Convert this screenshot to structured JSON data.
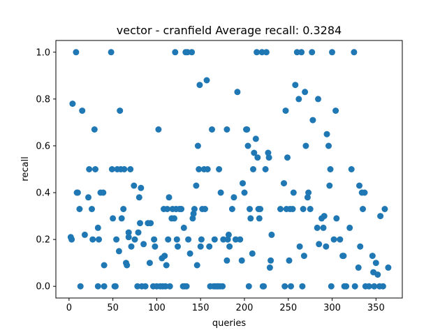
{
  "chart_data": {
    "type": "scatter",
    "title": "vector - cranfield  Average recall: 0.3284",
    "xlabel": "queries",
    "ylabel": "recall",
    "xlim": [
      -15,
      380
    ],
    "ylim": [
      -0.05,
      1.05
    ],
    "xticks": [
      "0",
      "50",
      "100",
      "150",
      "200",
      "250",
      "300",
      "350"
    ],
    "yticks": [
      "0.0",
      "0.2",
      "0.4",
      "0.6",
      "0.8",
      "1.0"
    ],
    "grid": false,
    "marker_color": "#1f77b4",
    "points": [
      [
        2,
        0.21
      ],
      [
        3,
        0.2
      ],
      [
        4,
        0.78
      ],
      [
        8,
        1.0
      ],
      [
        9,
        0.4
      ],
      [
        10,
        0.4
      ],
      [
        12,
        0.33
      ],
      [
        13,
        0.0
      ],
      [
        15,
        0.75
      ],
      [
        18,
        0.22
      ],
      [
        22,
        0.38
      ],
      [
        23,
        0.5
      ],
      [
        26,
        0.33
      ],
      [
        27,
        0.2
      ],
      [
        29,
        0.67
      ],
      [
        30,
        0.5
      ],
      [
        33,
        0.0
      ],
      [
        33,
        0.25
      ],
      [
        34,
        0.2
      ],
      [
        36,
        0.4
      ],
      [
        39,
        0.4
      ],
      [
        40,
        0.09
      ],
      [
        40,
        0.0
      ],
      [
        48,
        1.0
      ],
      [
        49,
        0.5
      ],
      [
        50,
        0.29
      ],
      [
        52,
        0.0
      ],
      [
        53,
        0.0
      ],
      [
        54,
        0.2
      ],
      [
        55,
        0.5
      ],
      [
        57,
        0.15
      ],
      [
        58,
        0.75
      ],
      [
        59,
        0.5
      ],
      [
        60,
        0.29
      ],
      [
        62,
        0.33
      ],
      [
        63,
        0.5
      ],
      [
        65,
        0.1
      ],
      [
        66,
        0.09
      ],
      [
        68,
        0.21
      ],
      [
        68,
        0.23
      ],
      [
        70,
        0.5
      ],
      [
        71,
        0.17
      ],
      [
        74,
        0.43
      ],
      [
        75,
        0.2
      ],
      [
        78,
        0.0
      ],
      [
        79,
        0.23
      ],
      [
        80,
        0.38
      ],
      [
        81,
        0.27
      ],
      [
        82,
        0.42
      ],
      [
        83,
        0.0
      ],
      [
        85,
        0.18
      ],
      [
        87,
        0.0
      ],
      [
        90,
        0.27
      ],
      [
        92,
        0.1
      ],
      [
        93,
        0.27
      ],
      [
        96,
        0.0
      ],
      [
        97,
        0.2
      ],
      [
        98,
        0.17
      ],
      [
        100,
        0.0
      ],
      [
        102,
        0.67
      ],
      [
        104,
        0.0
      ],
      [
        106,
        0.12
      ],
      [
        107,
        0.0
      ],
      [
        108,
        0.33
      ],
      [
        109,
        0.13
      ],
      [
        110,
        0.0
      ],
      [
        111,
        0.09
      ],
      [
        112,
        0.33
      ],
      [
        113,
        0.2
      ],
      [
        114,
        0.38
      ],
      [
        115,
        0.0
      ],
      [
        117,
        0.29
      ],
      [
        118,
        0.33
      ],
      [
        120,
        0.29
      ],
      [
        121,
        1.0
      ],
      [
        122,
        0.33
      ],
      [
        123,
        0.2
      ],
      [
        124,
        0.17
      ],
      [
        126,
        0.33
      ],
      [
        128,
        0.33
      ],
      [
        130,
        0.0
      ],
      [
        131,
        0.25
      ],
      [
        132,
        0.0
      ],
      [
        133,
        1.0
      ],
      [
        134,
        0.0
      ],
      [
        135,
        1.0
      ],
      [
        136,
        0.2
      ],
      [
        138,
        0.14
      ],
      [
        140,
        1.0
      ],
      [
        141,
        0.29
      ],
      [
        142,
        0.31
      ],
      [
        143,
        0.33
      ],
      [
        145,
        0.43
      ],
      [
        146,
        0.09
      ],
      [
        147,
        0.6
      ],
      [
        148,
        0.5
      ],
      [
        149,
        0.86
      ],
      [
        150,
        0.17
      ],
      [
        151,
        0.2
      ],
      [
        152,
        0.33
      ],
      [
        154,
        0.5
      ],
      [
        155,
        0.33
      ],
      [
        157,
        0.88
      ],
      [
        158,
        0.5
      ],
      [
        160,
        0.17
      ],
      [
        161,
        0.0
      ],
      [
        163,
        0.67
      ],
      [
        165,
        0.0
      ],
      [
        166,
        0.2
      ],
      [
        167,
        0.0
      ],
      [
        169,
        0.0
      ],
      [
        170,
        0.0
      ],
      [
        171,
        0.5
      ],
      [
        172,
        0.0
      ],
      [
        173,
        0.4
      ],
      [
        175,
        0.0
      ],
      [
        176,
        0.2
      ],
      [
        180,
        0.67
      ],
      [
        180,
        0.11
      ],
      [
        181,
        0.2
      ],
      [
        182,
        0.22
      ],
      [
        183,
        0.17
      ],
      [
        186,
        0.33
      ],
      [
        188,
        0.38
      ],
      [
        190,
        0.2
      ],
      [
        192,
        0.83
      ],
      [
        195,
        0.2
      ],
      [
        197,
        0.11
      ],
      [
        198,
        0.44
      ],
      [
        200,
        0.4
      ],
      [
        202,
        0.67
      ],
      [
        203,
        0.67
      ],
      [
        204,
        0.6
      ],
      [
        205,
        0.0
      ],
      [
        206,
        0.33
      ],
      [
        207,
        0.29
      ],
      [
        209,
        0.14
      ],
      [
        210,
        0.5
      ],
      [
        211,
        0.57
      ],
      [
        213,
        0.63
      ],
      [
        214,
        1.0
      ],
      [
        215,
        0.55
      ],
      [
        216,
        0.33
      ],
      [
        217,
        0.29
      ],
      [
        218,
        0.33
      ],
      [
        220,
        1.0
      ],
      [
        221,
        0.0
      ],
      [
        222,
        0.0
      ],
      [
        224,
        0.5
      ],
      [
        225,
        1.0
      ],
      [
        227,
        0.57
      ],
      [
        228,
        0.55
      ],
      [
        229,
        0.08
      ],
      [
        230,
        0.11
      ],
      [
        231,
        0.22
      ],
      [
        241,
        0.33
      ],
      [
        245,
        0.44
      ],
      [
        246,
        0.0
      ],
      [
        247,
        0.75
      ],
      [
        248,
        0.33
      ],
      [
        249,
        0.55
      ],
      [
        251,
        0.11
      ],
      [
        252,
        0.33
      ],
      [
        253,
        0.0
      ],
      [
        255,
        0.33
      ],
      [
        256,
        0.4
      ],
      [
        258,
        0.86
      ],
      [
        260,
        1.0
      ],
      [
        262,
        0.8
      ],
      [
        263,
        0.17
      ],
      [
        265,
        1.0
      ],
      [
        266,
        0.0
      ],
      [
        267,
        0.33
      ],
      [
        268,
        0.13
      ],
      [
        269,
        0.83
      ],
      [
        270,
        0.6
      ],
      [
        272,
        0.38
      ],
      [
        273,
        0.4
      ],
      [
        275,
        0.33
      ],
      [
        277,
        1.0
      ],
      [
        278,
        0.71
      ],
      [
        283,
        0.25
      ],
      [
        284,
        0.8
      ],
      [
        285,
        0.18
      ],
      [
        288,
        0.29
      ],
      [
        290,
        0.25
      ],
      [
        291,
        0.3
      ],
      [
        293,
        0.17
      ],
      [
        294,
        0.65
      ],
      [
        296,
        0.6
      ],
      [
        297,
        0.43
      ],
      [
        298,
        0.5
      ],
      [
        299,
        0.0
      ],
      [
        300,
        1.0
      ],
      [
        302,
        0.2
      ],
      [
        304,
        0.75
      ],
      [
        305,
        0.29
      ],
      [
        309,
        0.2
      ],
      [
        312,
        0.13
      ],
      [
        313,
        0.13
      ],
      [
        314,
        0.0
      ],
      [
        316,
        0.0
      ],
      [
        320,
        0.25
      ],
      [
        322,
        0.5
      ],
      [
        325,
        1.0
      ],
      [
        326,
        0.0
      ],
      [
        330,
        0.08
      ],
      [
        331,
        0.43
      ],
      [
        332,
        0.17
      ],
      [
        334,
        0.4
      ],
      [
        335,
        0.33
      ],
      [
        337,
        0.4
      ],
      [
        338,
        0.0
      ],
      [
        342,
        0.0
      ],
      [
        346,
        0.13
      ],
      [
        347,
        0.06
      ],
      [
        348,
        0.0
      ],
      [
        350,
        0.1
      ],
      [
        352,
        0.05
      ],
      [
        354,
        0.0
      ],
      [
        355,
        0.3
      ],
      [
        358,
        0.0
      ],
      [
        360,
        0.33
      ],
      [
        364,
        0.08
      ]
    ]
  }
}
